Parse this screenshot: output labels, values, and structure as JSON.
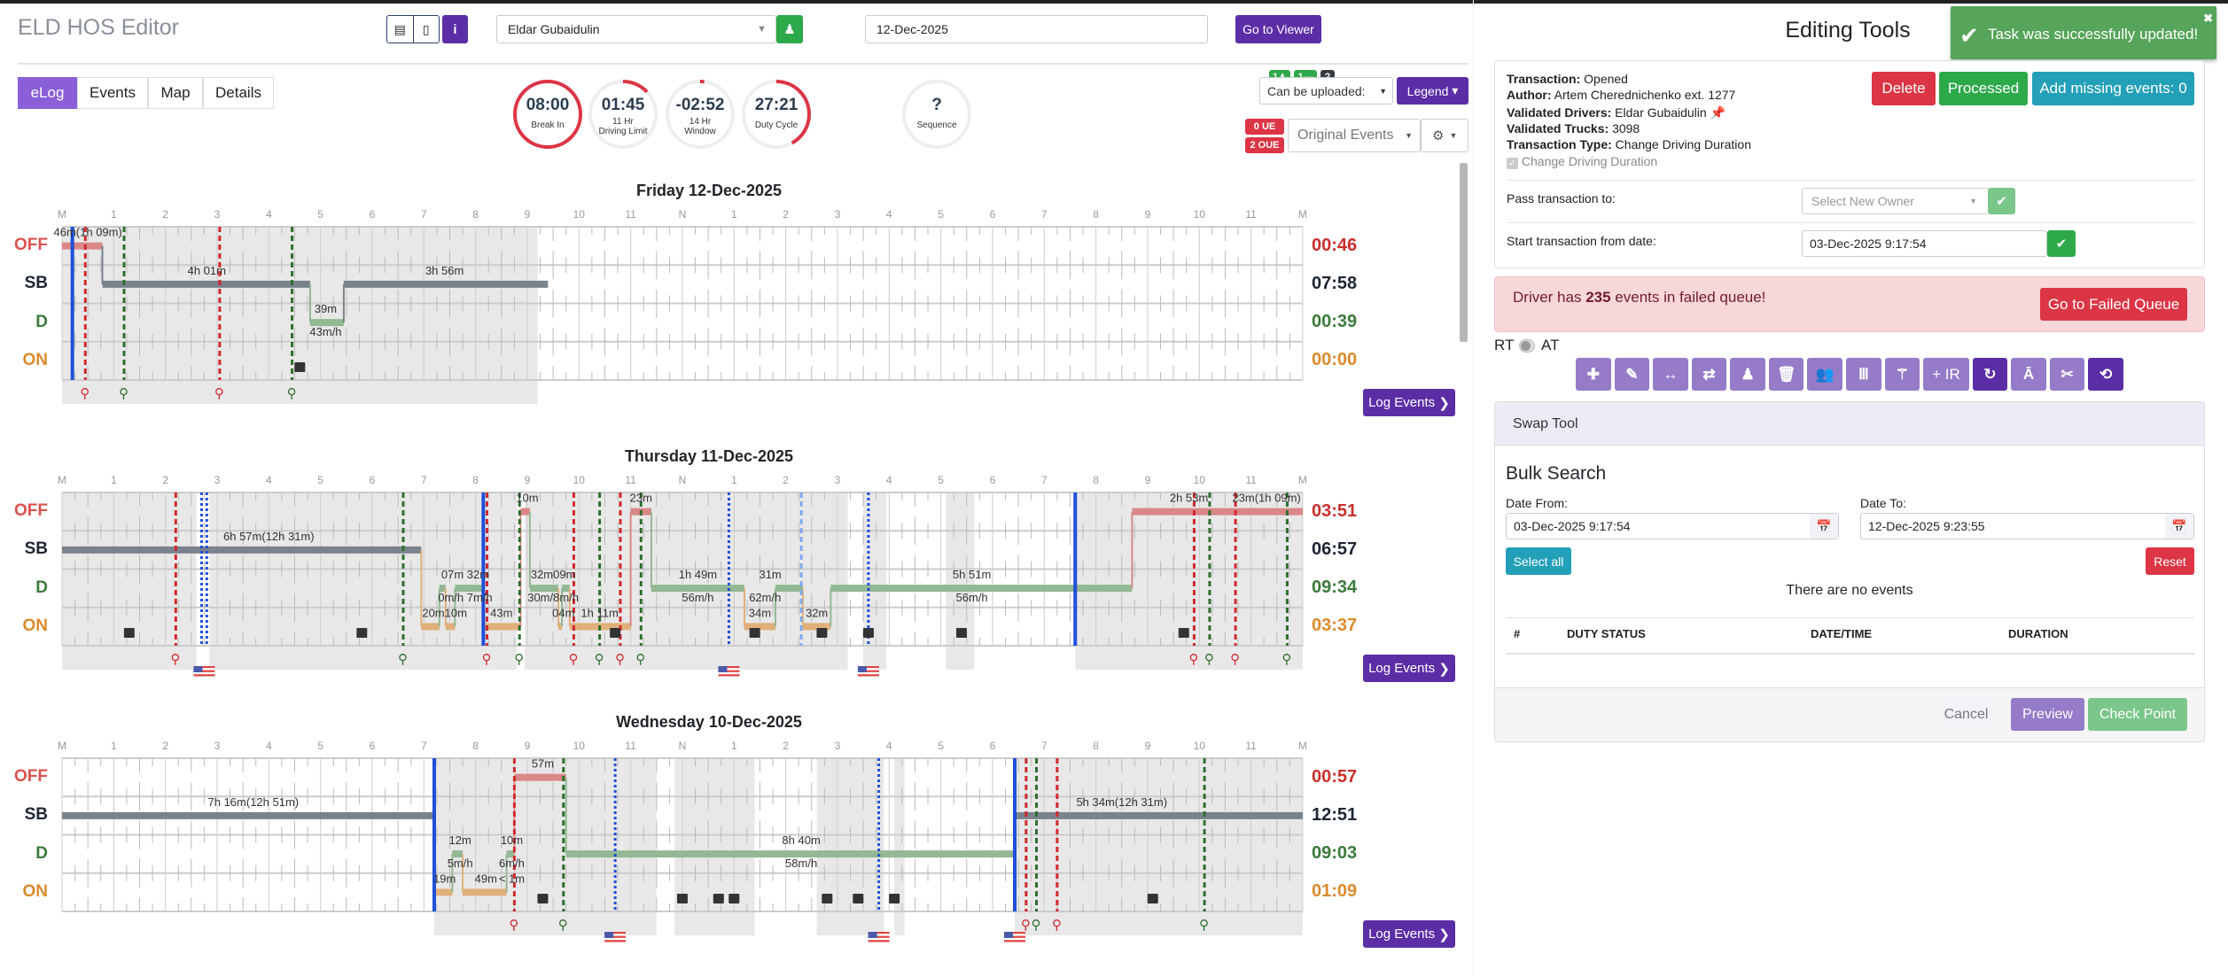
{
  "header": {
    "title": "ELD HOS Editor",
    "driver": "Eldar Gubaidulin",
    "date": "12-Dec-2025",
    "go_to_viewer": "Go to Viewer"
  },
  "tabs": [
    "eLog",
    "Events",
    "Map",
    "Details"
  ],
  "timers": [
    {
      "value": "08:00",
      "sub": "",
      "label": "Break In",
      "progress": 1.0
    },
    {
      "value": "01:45",
      "sub": "11 Hr",
      "label": "Driving Limit",
      "progress": 0.13
    },
    {
      "value": "-02:52",
      "sub": "14 Hr",
      "label": "Window",
      "progress": 0.02
    },
    {
      "value": "27:21",
      "sub": "",
      "label": "Duty Cycle",
      "progress": 0.42
    },
    {
      "value": "?",
      "sub": "",
      "label": "Sequence",
      "progress": 0
    }
  ],
  "controls": {
    "badges": [
      "1",
      "1",
      "?"
    ],
    "upload_select": "Can be uploaded:",
    "legend": "Legend",
    "ue": "0 UE",
    "oue": "2 OUE",
    "events_select": "Original Events"
  },
  "statuses": [
    "OFF",
    "SB",
    "D",
    "ON"
  ],
  "status_colors": {
    "OFF": "#d9534f",
    "SB": "#1c2633",
    "D": "#3a7a3a",
    "ON": "#dc8a2c"
  },
  "bar_colors": {
    "OFF": "#d98787",
    "SB": "#7a828c",
    "D": "#93b893",
    "ON": "#e0b07a"
  },
  "hour_labels": [
    "M",
    "1",
    "2",
    "3",
    "4",
    "5",
    "6",
    "7",
    "8",
    "9",
    "10",
    "11",
    "N",
    "1",
    "2",
    "3",
    "4",
    "5",
    "6",
    "7",
    "8",
    "9",
    "10",
    "11",
    "M"
  ],
  "log_events": "Log Events",
  "days": [
    {
      "title": "Friday 12-Dec-2025",
      "totals": [
        "00:46",
        "07:58",
        "00:39",
        "00:00"
      ],
      "shaded": [
        [
          0,
          9.2
        ]
      ],
      "segments": [
        [
          "OFF",
          0,
          0.78
        ],
        [
          "SB",
          0.78,
          4.8
        ],
        [
          "D",
          4.8,
          5.45
        ],
        [
          "SB",
          5.45,
          9.4
        ]
      ],
      "labels": [
        [
          "46m(1h 09m)",
          0.5,
          0,
          "above"
        ],
        [
          "4h 01m",
          2.8,
          1,
          "above"
        ],
        [
          "39m",
          5.1,
          2,
          "above"
        ],
        [
          "43m/h",
          5.1,
          2,
          "below"
        ],
        [
          "3h 56m",
          7.4,
          1,
          "above"
        ]
      ],
      "lines": [
        [
          0.2,
          "blue"
        ],
        [
          0.45,
          "red"
        ],
        [
          1.2,
          "green"
        ],
        [
          3.05,
          "red"
        ],
        [
          4.45,
          "green"
        ]
      ],
      "cameras": [
        4.6
      ],
      "flags": []
    },
    {
      "title": "Thursday 11-Dec-2025",
      "totals": [
        "03:51",
        "06:57",
        "09:34",
        "03:37"
      ],
      "shaded": [
        [
          0,
          2.6
        ],
        [
          2.85,
          8.8
        ],
        [
          8.95,
          15.2
        ],
        [
          15.5,
          15.95
        ],
        [
          17.1,
          17.65
        ],
        [
          19.6,
          24
        ]
      ],
      "segments": [
        [
          "SB",
          0,
          6.95
        ],
        [
          "ON",
          6.95,
          7.3
        ],
        [
          "D",
          7.3,
          7.42
        ],
        [
          "ON",
          7.42,
          7.6
        ],
        [
          "D",
          7.6,
          8.15
        ],
        [
          "ON",
          8.15,
          8.87
        ],
        [
          "OFF",
          8.87,
          9.05
        ],
        [
          "D",
          9.05,
          9.6
        ],
        [
          "ON",
          9.6,
          9.67
        ],
        [
          "D",
          9.67,
          9.82
        ],
        [
          "ON",
          9.82,
          11.0
        ],
        [
          "OFF",
          11.0,
          11.4
        ],
        [
          "D",
          11.4,
          13.2
        ],
        [
          "ON",
          13.2,
          13.8
        ],
        [
          "D",
          13.8,
          14.33
        ],
        [
          "ON",
          14.33,
          14.87
        ],
        [
          "D",
          14.87,
          20.7
        ],
        [
          "OFF",
          20.7,
          24
        ]
      ],
      "labels": [
        [
          "6h 57m(12h 31m)",
          4.0,
          1,
          "above"
        ],
        [
          "07m  32m",
          7.8,
          2,
          "above"
        ],
        [
          "0m/h 7m/h",
          7.8,
          2,
          "below"
        ],
        [
          "20m10m",
          7.4,
          3,
          "above"
        ],
        [
          "10m",
          9.0,
          0,
          "above"
        ],
        [
          "43m",
          8.5,
          3,
          "above"
        ],
        [
          "32m09m",
          9.5,
          2,
          "above"
        ],
        [
          "30m/8m/h",
          9.5,
          2,
          "below"
        ],
        [
          "04m",
          9.7,
          3,
          "above"
        ],
        [
          "1h 11m",
          10.4,
          3,
          "above"
        ],
        [
          "23m",
          11.2,
          0,
          "above"
        ],
        [
          "1h 49m",
          12.3,
          2,
          "above"
        ],
        [
          "56m/h",
          12.3,
          2,
          "below"
        ],
        [
          "31m",
          13.7,
          2,
          "above"
        ],
        [
          "62m/h",
          13.6,
          2,
          "below"
        ],
        [
          "34m",
          13.5,
          3,
          "above"
        ],
        [
          "32m",
          14.6,
          3,
          "above"
        ],
        [
          "5h 51m",
          17.6,
          2,
          "above"
        ],
        [
          "56m/h",
          17.6,
          2,
          "below"
        ],
        [
          "2h 53m",
          21.8,
          0,
          "above"
        ],
        [
          "23m(1h 09m)",
          23.3,
          0,
          "above"
        ]
      ],
      "lines": [
        [
          2.2,
          "red"
        ],
        [
          2.7,
          "bluedot"
        ],
        [
          2.8,
          "bluedot"
        ],
        [
          6.6,
          "green"
        ],
        [
          8.15,
          "blue"
        ],
        [
          8.22,
          "red"
        ],
        [
          8.85,
          "green"
        ],
        [
          9.9,
          "red"
        ],
        [
          10.4,
          "green"
        ],
        [
          10.8,
          "red"
        ],
        [
          11.2,
          "green"
        ],
        [
          12.9,
          "bluedot"
        ],
        [
          14.3,
          "lightblue"
        ],
        [
          15.6,
          "bluedot"
        ],
        [
          19.6,
          "blue"
        ],
        [
          21.9,
          "red"
        ],
        [
          22.2,
          "green"
        ],
        [
          22.7,
          "red"
        ],
        [
          23.7,
          "green"
        ]
      ],
      "cameras": [
        1.3,
        5.8,
        10.7,
        13.4,
        14.7,
        15.6,
        17.4,
        21.7
      ],
      "flags": [
        2.75,
        12.9,
        15.6
      ]
    },
    {
      "title": "Wednesday 10-Dec-2025",
      "totals": [
        "00:57",
        "12:51",
        "09:03",
        "01:09"
      ],
      "shaded": [
        [
          7.2,
          11.5
        ],
        [
          11.85,
          13.4
        ],
        [
          14.6,
          15.9
        ],
        [
          16.1,
          16.3
        ],
        [
          18.43,
          24
        ]
      ],
      "segments": [
        [
          "SB",
          0,
          7.2
        ],
        [
          "ON",
          7.2,
          7.55
        ],
        [
          "D",
          7.55,
          7.75
        ],
        [
          "ON",
          7.75,
          8.6
        ],
        [
          "D",
          8.6,
          8.75
        ],
        [
          "OFF",
          8.75,
          9.75
        ],
        [
          "D",
          9.75,
          18.43
        ],
        [
          "SB",
          18.43,
          24
        ]
      ],
      "labels": [
        [
          "7h 16m(12h 51m)",
          3.7,
          1,
          "above"
        ],
        [
          "57m",
          9.3,
          0,
          "above"
        ],
        [
          "12m",
          7.7,
          2,
          "above"
        ],
        [
          "5m/h",
          7.7,
          2,
          "below"
        ],
        [
          "10m",
          8.7,
          2,
          "above"
        ],
        [
          "6m/h",
          8.7,
          2,
          "below"
        ],
        [
          "19m",
          7.4,
          3,
          "above"
        ],
        [
          "49m",
          8.2,
          3,
          "above"
        ],
        [
          "< 1m",
          8.7,
          3,
          "above"
        ],
        [
          "8h 40m",
          14.3,
          2,
          "above"
        ],
        [
          "58m/h",
          14.3,
          2,
          "below"
        ],
        [
          "5h 34m(12h 31m)",
          20.5,
          1,
          "above"
        ]
      ],
      "lines": [
        [
          7.2,
          "blue"
        ],
        [
          8.75,
          "red"
        ],
        [
          9.7,
          "green"
        ],
        [
          10.7,
          "bluedot"
        ],
        [
          15.8,
          "bluedot"
        ],
        [
          18.43,
          "blue"
        ],
        [
          18.65,
          "red"
        ],
        [
          18.85,
          "green"
        ],
        [
          19.25,
          "red"
        ],
        [
          22.1,
          "green"
        ]
      ],
      "cameras": [
        9.3,
        12.0,
        12.7,
        13.0,
        14.8,
        15.4,
        16.1,
        21.1
      ],
      "flags": [
        10.7,
        15.8,
        18.43
      ]
    }
  ],
  "right": {
    "title": "Editing Tools",
    "toast": "Task was successfully updated!",
    "transaction": {
      "l1": "Transaction:",
      "v1": "Opened",
      "l2": "Author:",
      "v2": "Artem Cherednichenko ext. 1277",
      "l3": "Validated Drivers:",
      "v3": "Eldar Gubaidulin",
      "l4": "Validated Trucks:",
      "v4": "3098",
      "l5": "Transaction Type:",
      "v5": "Change Driving Duration",
      "checkbox": "Change Driving Duration"
    },
    "delete": "Delete",
    "processed": "Processed",
    "add_missing": "Add missing events: 0",
    "pass_label": "Pass transaction to:",
    "pass_placeholder": "Select New Owner",
    "start_label": "Start transaction from date:",
    "start_value": "03-Dec-2025 9:17:54",
    "alert_pre": "Driver has ",
    "alert_count": "235",
    "alert_post": " events in failed queue!",
    "failed_queue": "Go to Failed Queue",
    "rt": "RT",
    "at": "AT",
    "tools": [
      "✚",
      "✎",
      "↔",
      "⇄",
      "♟",
      "🗑",
      "👥",
      "Ⅲ",
      "⚚",
      "+ IR",
      "↻",
      "Ā",
      "✂",
      "⟲"
    ],
    "swap_title": "Swap Tool",
    "bulk_title": "Bulk Search",
    "date_from_label": "Date From:",
    "date_from": "03-Dec-2025 9:17:54",
    "date_to_label": "Date To:",
    "date_to": "12-Dec-2025 9:23:55",
    "select_all": "Select all",
    "reset": "Reset",
    "no_events": "There are no events",
    "columns": [
      "#",
      "DUTY STATUS",
      "DATE/TIME",
      "DURATION"
    ],
    "cancel": "Cancel",
    "preview": "Preview",
    "check_point": "Check Point"
  }
}
